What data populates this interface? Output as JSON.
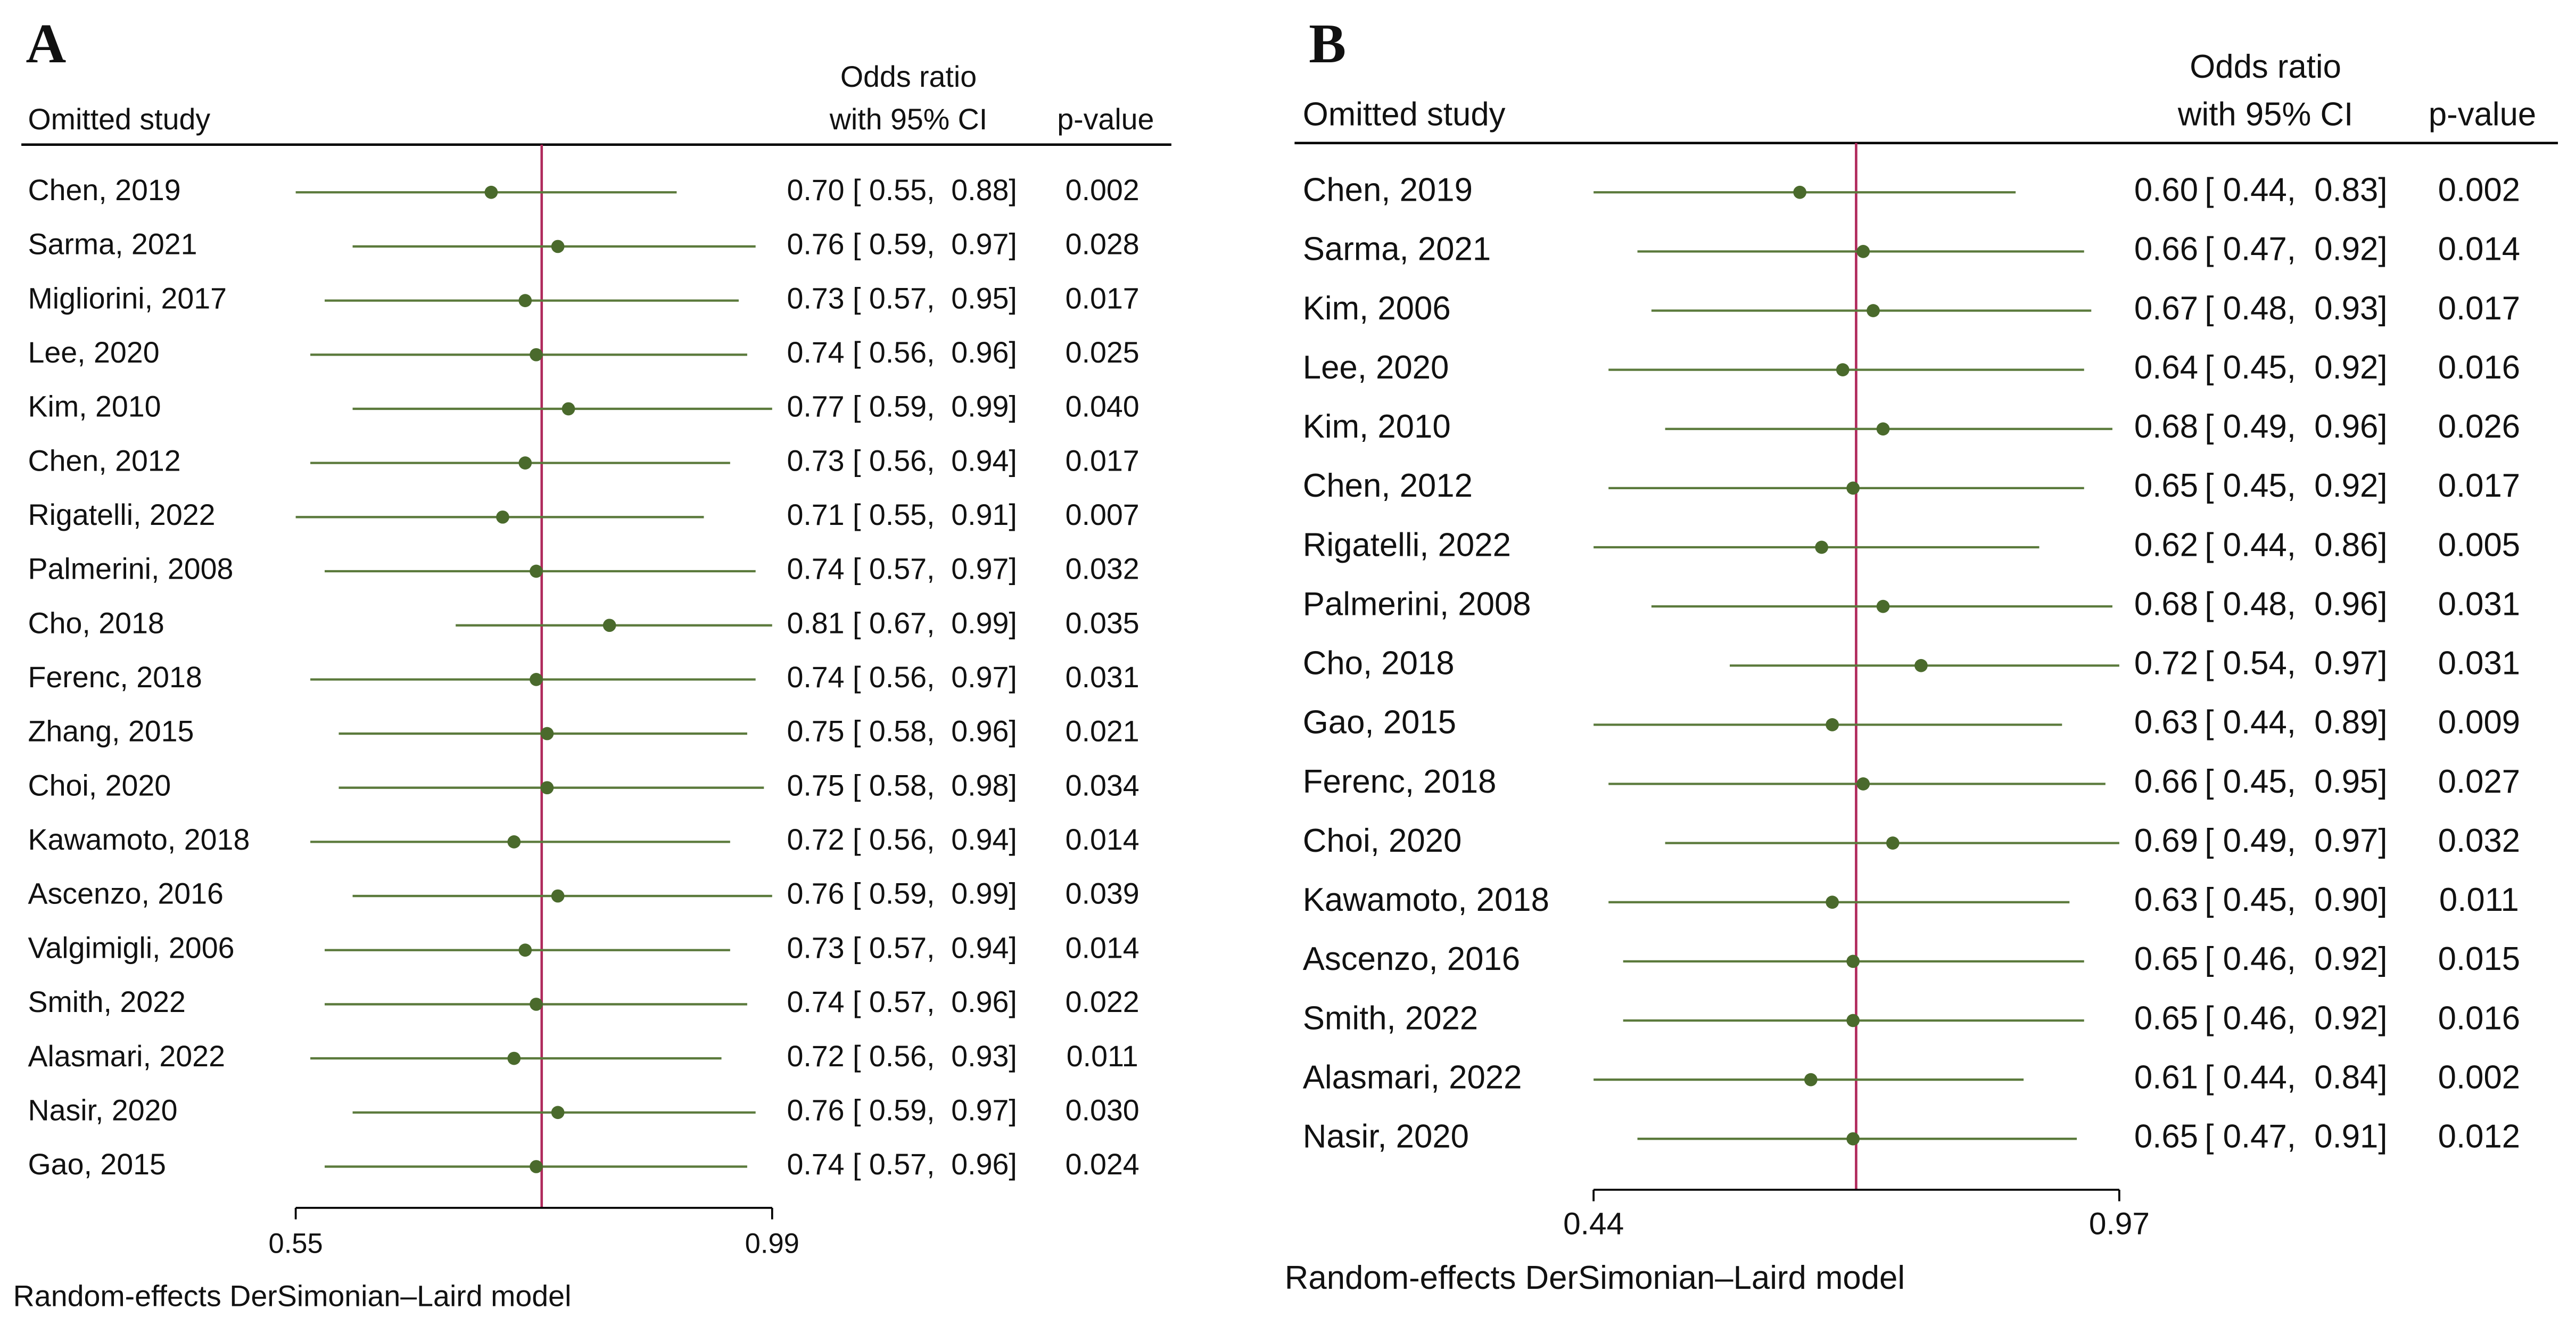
{
  "chart_data": [
    {
      "type": "forest",
      "panel": "A",
      "study_header": "Omitted study",
      "effect_header": [
        "Odds ratio",
        "with 95% CI"
      ],
      "p_header": "p-value",
      "note": "Random-effects DerSimonian–Laird model",
      "categories": [
        "Chen, 2019",
        "Sarma, 2021",
        "Migliorini, 2017",
        "Lee, 2020",
        "Kim, 2010",
        "Chen, 2012",
        "Rigatelli, 2022",
        "Palmerini, 2008",
        "Cho, 2018",
        "Ferenc, 2018",
        "Zhang, 2015",
        "Choi, 2020",
        "Kawamoto, 2018",
        "Ascenzo, 2016",
        "Valgimigli, 2006",
        "Smith, 2022",
        "Alasmari, 2022",
        "Nasir, 2020",
        "Gao, 2015"
      ],
      "values": [
        0.7,
        0.76,
        0.73,
        0.74,
        0.77,
        0.73,
        0.71,
        0.74,
        0.81,
        0.74,
        0.75,
        0.75,
        0.72,
        0.76,
        0.73,
        0.74,
        0.72,
        0.76,
        0.74
      ],
      "value_labels": [
        "0.70",
        "0.76",
        "0.73",
        "0.74",
        "0.77",
        "0.73",
        "0.71",
        "0.74",
        "0.81",
        "0.74",
        "0.75",
        "0.75",
        "0.72",
        "0.76",
        "0.73",
        "0.74",
        "0.72",
        "0.76",
        "0.74"
      ],
      "ci_lower": [
        0.55,
        0.59,
        0.57,
        0.56,
        0.59,
        0.56,
        0.55,
        0.57,
        0.67,
        0.56,
        0.58,
        0.58,
        0.56,
        0.59,
        0.57,
        0.57,
        0.56,
        0.59,
        0.57
      ],
      "ci_upper": [
        0.88,
        0.97,
        0.95,
        0.96,
        0.99,
        0.94,
        0.91,
        0.97,
        0.99,
        0.97,
        0.96,
        0.98,
        0.94,
        0.99,
        0.94,
        0.96,
        0.93,
        0.97,
        0.96
      ],
      "ci_labels": [
        "[ 0.55,  0.88]",
        "[ 0.59,  0.97]",
        "[ 0.57,  0.95]",
        "[ 0.56,  0.96]",
        "[ 0.59,  0.99]",
        "[ 0.56,  0.94]",
        "[ 0.55,  0.91]",
        "[ 0.57,  0.97]",
        "[ 0.67,  0.99]",
        "[ 0.56,  0.97]",
        "[ 0.58,  0.96]",
        "[ 0.58,  0.98]",
        "[ 0.56,  0.94]",
        "[ 0.59,  0.99]",
        "[ 0.57,  0.94]",
        "[ 0.57,  0.96]",
        "[ 0.56,  0.93]",
        "[ 0.59,  0.97]",
        "[ 0.57,  0.96]"
      ],
      "p_values": [
        "0.002",
        "0.028",
        "0.017",
        "0.025",
        "0.040",
        "0.017",
        "0.007",
        "0.032",
        "0.035",
        "0.031",
        "0.021",
        "0.034",
        "0.014",
        "0.039",
        "0.014",
        "0.022",
        "0.011",
        "0.030",
        "0.024"
      ],
      "xlim": [
        0.55,
        0.99
      ],
      "xticks": [
        0.55,
        0.99
      ],
      "log_x": true,
      "reference_line": 0.745,
      "color": "#5b7a3c",
      "marker_color": "#4a6a2c",
      "reference_color": "#b02a5c"
    },
    {
      "type": "forest",
      "panel": "B",
      "study_header": "Omitted study",
      "effect_header": [
        "Odds ratio",
        "with 95% CI"
      ],
      "p_header": "p-value",
      "note": "Random-effects DerSimonian–Laird model",
      "categories": [
        "Chen, 2019",
        "Sarma, 2021",
        "Kim, 2006",
        "Lee, 2020",
        "Kim, 2010",
        "Chen, 2012",
        "Rigatelli, 2022",
        "Palmerini, 2008",
        "Cho, 2018",
        "Gao, 2015",
        "Ferenc, 2018",
        "Choi, 2020",
        "Kawamoto, 2018",
        "Ascenzo, 2016",
        "Smith, 2022",
        "Alasmari, 2022",
        "Nasir, 2020"
      ],
      "values": [
        0.6,
        0.66,
        0.67,
        0.64,
        0.68,
        0.65,
        0.62,
        0.68,
        0.72,
        0.63,
        0.66,
        0.69,
        0.63,
        0.65,
        0.65,
        0.61,
        0.65
      ],
      "value_labels": [
        "0.60",
        "0.66",
        "0.67",
        "0.64",
        "0.68",
        "0.65",
        "0.62",
        "0.68",
        "0.72",
        "0.63",
        "0.66",
        "0.69",
        "0.63",
        "0.65",
        "0.65",
        "0.61",
        "0.65"
      ],
      "ci_lower": [
        0.44,
        0.47,
        0.48,
        0.45,
        0.49,
        0.45,
        0.44,
        0.48,
        0.54,
        0.44,
        0.45,
        0.49,
        0.45,
        0.46,
        0.46,
        0.44,
        0.47
      ],
      "ci_upper": [
        0.83,
        0.92,
        0.93,
        0.92,
        0.96,
        0.92,
        0.86,
        0.96,
        0.97,
        0.89,
        0.95,
        0.97,
        0.9,
        0.92,
        0.92,
        0.84,
        0.91
      ],
      "ci_labels": [
        "[ 0.44,  0.83]",
        "[ 0.47,  0.92]",
        "[ 0.48,  0.93]",
        "[ 0.45,  0.92]",
        "[ 0.49,  0.96]",
        "[ 0.45,  0.92]",
        "[ 0.44,  0.86]",
        "[ 0.48,  0.96]",
        "[ 0.54,  0.97]",
        "[ 0.44,  0.89]",
        "[ 0.45,  0.95]",
        "[ 0.49,  0.97]",
        "[ 0.45,  0.90]",
        "[ 0.46,  0.92]",
        "[ 0.46,  0.92]",
        "[ 0.44,  0.84]",
        "[ 0.47,  0.91]"
      ],
      "p_values": [
        "0.002",
        "0.014",
        "0.017",
        "0.016",
        "0.026",
        "0.017",
        "0.005",
        "0.031",
        "0.031",
        "0.009",
        "0.027",
        "0.032",
        "0.011",
        "0.015",
        "0.016",
        "0.002",
        "0.012"
      ],
      "xlim": [
        0.44,
        0.97
      ],
      "xticks": [
        0.44,
        0.97
      ],
      "log_x": true,
      "reference_line": 0.653,
      "color": "#5b7a3c",
      "marker_color": "#4a6a2c",
      "reference_color": "#b02a5c"
    }
  ]
}
